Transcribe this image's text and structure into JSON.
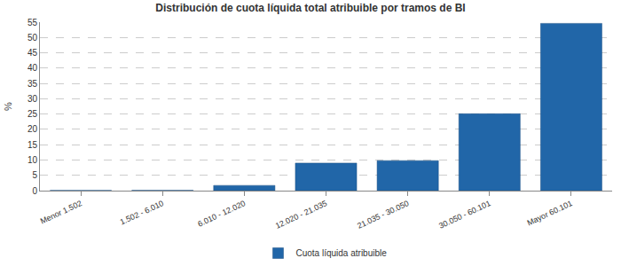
{
  "chart_data": {
    "type": "bar",
    "title": "Distribución de cuota líquida total atribuible por tramos de BI",
    "y_label": "%",
    "categories": [
      "Menor 1.502",
      "1.502 - 6.010",
      "6.010 - 12.020",
      "12.020 - 21.035",
      "21.035 - 30.050",
      "30.050 - 60.101",
      "Mayor 60.101"
    ],
    "series": [
      {
        "name": "Cuota líquida atribuible",
        "color": "#2166a8",
        "values": [
          0.05,
          0.1,
          1.7,
          9.0,
          9.8,
          25.1,
          54.6
        ]
      }
    ],
    "ylim": [
      0,
      55
    ],
    "yticks": [
      0,
      5,
      10,
      15,
      20,
      25,
      30,
      35,
      40,
      45,
      50,
      55
    ],
    "grid": true,
    "legend": "bottom"
  }
}
